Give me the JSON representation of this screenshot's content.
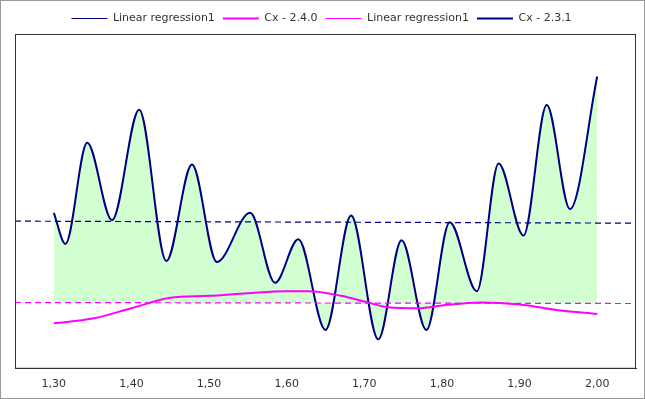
{
  "chart_data": {
    "type": "line",
    "xlim": [
      1.25,
      2.05
    ],
    "xticks": [
      {
        "value": 1.3,
        "label": "1,30"
      },
      {
        "value": 1.4,
        "label": "1,40"
      },
      {
        "value": 1.5,
        "label": "1,50"
      },
      {
        "value": 1.6,
        "label": "1,60"
      },
      {
        "value": 1.7,
        "label": "1,70"
      },
      {
        "value": 1.8,
        "label": "1,80"
      },
      {
        "value": 1.9,
        "label": "1,90"
      },
      {
        "value": 2.0,
        "label": "2,00"
      }
    ],
    "ylim": [
      0,
      100
    ],
    "grid": false,
    "tick_labels": "x",
    "legend": "top",
    "series": [
      {
        "name": "Cx - 2.3.1",
        "color": "#000080",
        "type": "area",
        "line_style": "solid",
        "x": [
          1.3,
          1.315,
          1.343,
          1.375,
          1.41,
          1.445,
          1.478,
          1.51,
          1.553,
          1.585,
          1.615,
          1.65,
          1.683,
          1.718,
          1.748,
          1.78,
          1.81,
          1.845,
          1.873,
          1.905,
          1.935,
          1.965,
          2.0
        ],
        "values": [
          46.6,
          37.3,
          67.5,
          44.4,
          77.4,
          32.2,
          61.0,
          31.9,
          46.6,
          25.7,
          38.7,
          11.6,
          45.8,
          8.8,
          38.4,
          11.6,
          43.8,
          23.2,
          61.3,
          39.8,
          78.8,
          47.7,
          87.3
        ]
      },
      {
        "name": "Linear regression1",
        "color": "#000080",
        "type": "line",
        "line_style": "dashed",
        "x": [
          1.25,
          2.05
        ],
        "values": [
          44.1,
          43.5
        ]
      },
      {
        "name": "Cx - 2.4.0",
        "color": "#ff00ff",
        "type": "line",
        "line_style": "solid",
        "x": [
          1.3,
          1.35,
          1.4,
          1.45,
          1.5,
          1.55,
          1.6,
          1.63,
          1.67,
          1.7,
          1.73,
          1.77,
          1.8,
          1.85,
          1.9,
          1.95,
          2.0
        ],
        "values": [
          13.6,
          15.0,
          18.1,
          21.2,
          21.8,
          22.6,
          23.2,
          23.2,
          21.8,
          20.1,
          18.4,
          18.1,
          18.9,
          19.8,
          19.2,
          17.5,
          16.4
        ]
      },
      {
        "name": "Linear regression1",
        "color": "#ff00ff",
        "type": "line",
        "line_style": "dashed",
        "x": [
          1.25,
          2.05
        ],
        "values": [
          19.8,
          19.5
        ]
      }
    ]
  }
}
